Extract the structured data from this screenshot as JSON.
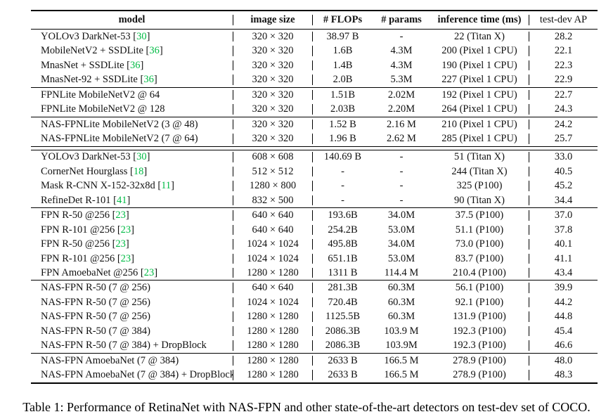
{
  "caption": "Table 1: Performance of RetinaNet with NAS-FPN and other state-of-the-art detectors on test-dev set of COCO.",
  "colors": {
    "citation_green": "#00bb44",
    "text": "#111111",
    "rule": "#000000",
    "background": "#ffffff"
  },
  "cite_prefix": "[",
  "cite_suffix": "]",
  "table": {
    "columns": [
      {
        "key": "model",
        "label": "model",
        "bold": true
      },
      {
        "key": "size",
        "label": "image size",
        "bold": true
      },
      {
        "key": "flops",
        "label": "# FLOPs",
        "bold": true
      },
      {
        "key": "params",
        "label": "# params",
        "bold": true
      },
      {
        "key": "inference",
        "label": "inference time (ms)",
        "bold": true
      },
      {
        "key": "ap",
        "label": "test-dev AP",
        "bold": false
      }
    ],
    "groups": [
      {
        "sep_after": "single",
        "rows": [
          {
            "model": "YOLOv3 DarkNet-53",
            "cite": "30",
            "size": "320 × 320",
            "flops": "38.97 B",
            "params": "-",
            "inference": "22 (Titan X)",
            "ap": "28.2"
          },
          {
            "model": "MobileNetV2 + SSDLite",
            "cite": "36",
            "size": "320 × 320",
            "flops": "1.6B",
            "params": "4.3M",
            "inference": "200 (Pixel 1 CPU)",
            "ap": "22.1"
          },
          {
            "model": "MnasNet + SSDLite",
            "cite": "36",
            "size": "320 × 320",
            "flops": "1.4B",
            "params": "4.3M",
            "inference": "190 (Pixel 1 CPU)",
            "ap": "22.3"
          },
          {
            "model": "MnasNet-92 + SSDLite",
            "cite": "36",
            "size": "320 × 320",
            "flops": "2.0B",
            "params": "5.3M",
            "inference": "227 (Pixel 1 CPU)",
            "ap": "22.9"
          }
        ]
      },
      {
        "sep_after": "single",
        "rows": [
          {
            "model": "FPNLite MobileNetV2  @ 64",
            "cite": null,
            "size": "320 × 320",
            "flops": "1.51B",
            "params": "2.02M",
            "inference": "192 (Pixel 1 CPU)",
            "ap": "22.7"
          },
          {
            "model": "FPNLite MobileNetV2  @ 128",
            "cite": null,
            "size": "320 × 320",
            "flops": "2.03B",
            "params": "2.20M",
            "inference": "264 (Pixel 1 CPU)",
            "ap": "24.3"
          }
        ]
      },
      {
        "sep_after": "double",
        "rows": [
          {
            "model": "NAS-FPNLite MobileNetV2 (3 @ 48)",
            "cite": null,
            "size": "320 × 320",
            "flops": "1.52 B",
            "params": "2.16 M",
            "inference": "210 (Pixel 1 CPU)",
            "ap": "24.2"
          },
          {
            "model": "NAS-FPNLite MobileNetV2 (7 @ 64)",
            "cite": null,
            "size": "320 × 320",
            "flops": "1.96 B",
            "params": "2.62 M",
            "inference": "285 (Pixel 1 CPU)",
            "ap": "25.7"
          }
        ]
      },
      {
        "sep_after": "single",
        "rows": [
          {
            "model": "YOLOv3 DarkNet-53",
            "cite": "30",
            "size": "608 × 608",
            "flops": "140.69 B",
            "params": "-",
            "inference": "51 (Titan X)",
            "ap": "33.0"
          },
          {
            "model": "CornerNet Hourglass",
            "cite": "18",
            "size": "512 × 512",
            "flops": "-",
            "params": "-",
            "inference": "244 (Titan X)",
            "ap": "40.5"
          },
          {
            "model": "Mask R-CNN X-152-32x8d",
            "cite": "11",
            "size": "1280 × 800",
            "flops": "-",
            "params": "-",
            "inference": "325 (P100)",
            "ap": "45.2"
          },
          {
            "model": "RefineDet R-101",
            "cite": "41",
            "size": "832 × 500",
            "flops": "-",
            "params": "-",
            "inference": "90 (Titan X)",
            "ap": "34.4"
          }
        ]
      },
      {
        "sep_after": "single",
        "rows": [
          {
            "model": "FPN R-50 @256",
            "cite": "23",
            "size": "640 × 640",
            "flops": "193.6B",
            "params": "34.0M",
            "inference": "37.5 (P100)",
            "ap": "37.0"
          },
          {
            "model": "FPN R-101 @256",
            "cite": "23",
            "size": "640 × 640",
            "flops": "254.2B",
            "params": "53.0M",
            "inference": "51.1 (P100)",
            "ap": "37.8"
          },
          {
            "model": "FPN R-50 @256",
            "cite": "23",
            "size": "1024 × 1024",
            "flops": "495.8B",
            "params": "34.0M",
            "inference": "73.0 (P100)",
            "ap": "40.1"
          },
          {
            "model": "FPN R-101 @256",
            "cite": "23",
            "size": "1024 × 1024",
            "flops": "651.1B",
            "params": "53.0M",
            "inference": "83.7 (P100)",
            "ap": "41.1"
          },
          {
            "model": "FPN AmoebaNet @256",
            "cite": "23",
            "size": "1280 × 1280",
            "flops": "1311 B",
            "params": "114.4 M",
            "inference": "210.4 (P100)",
            "ap": "43.4"
          }
        ]
      },
      {
        "sep_after": "single",
        "rows": [
          {
            "model": "NAS-FPN R-50 (7 @ 256)",
            "cite": null,
            "size": "640 × 640",
            "flops": "281.3B",
            "params": "60.3M",
            "inference": "56.1 (P100)",
            "ap": "39.9"
          },
          {
            "model": "NAS-FPN R-50 (7 @ 256)",
            "cite": null,
            "size": "1024 × 1024",
            "flops": "720.4B",
            "params": "60.3M",
            "inference": "92.1 (P100)",
            "ap": "44.2"
          },
          {
            "model": "NAS-FPN R-50 (7 @ 256)",
            "cite": null,
            "size": "1280 × 1280",
            "flops": "1125.5B",
            "params": "60.3M",
            "inference": "131.9 (P100)",
            "ap": "44.8"
          },
          {
            "model": "NAS-FPN R-50 (7 @ 384)",
            "cite": null,
            "size": "1280 × 1280",
            "flops": "2086.3B",
            "params": "103.9 M",
            "inference": "192.3 (P100)",
            "ap": "45.4"
          },
          {
            "model": "NAS-FPN R-50 (7 @ 384) + DropBlock",
            "cite": null,
            "size": "1280 × 1280",
            "flops": "2086.3B",
            "params": "103.9M",
            "inference": "192.3 (P100)",
            "ap": "46.6"
          }
        ]
      },
      {
        "sep_after": null,
        "rows": [
          {
            "model": "NAS-FPN AmoebaNet (7 @ 384)",
            "cite": null,
            "size": "1280 × 1280",
            "flops": "2633 B",
            "params": "166.5 M",
            "inference": "278.9 (P100)",
            "ap": "48.0"
          },
          {
            "model": "NAS-FPN AmoebaNet (7 @ 384) + DropBlock",
            "cite": null,
            "size": "1280 × 1280",
            "flops": "2633 B",
            "params": "166.5 M",
            "inference": "278.9 (P100)",
            "ap": "48.3"
          }
        ]
      }
    ]
  }
}
